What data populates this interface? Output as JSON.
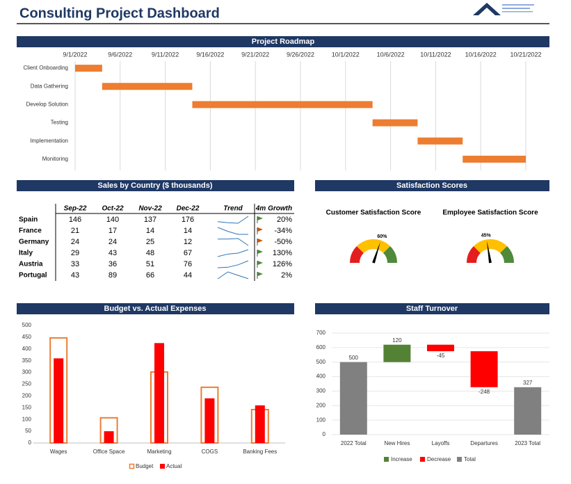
{
  "header": {
    "title": "Consulting Project Dashboard"
  },
  "sales_table": {
    "title": "Sales by Country ($ thousands)",
    "columns": [
      "Sep-22",
      "Oct-22",
      "Nov-22",
      "Dec-22",
      "Trend",
      "4m Growth"
    ],
    "rows": [
      {
        "country": "Spain",
        "values": [
          146,
          140,
          137,
          176
        ],
        "growth": "20%"
      },
      {
        "country": "France",
        "values": [
          21,
          17,
          14,
          14
        ],
        "growth": "-34%"
      },
      {
        "country": "Germany",
        "values": [
          24,
          24,
          25,
          12
        ],
        "growth": "-50%"
      },
      {
        "country": "Italy",
        "values": [
          29,
          43,
          48,
          67
        ],
        "growth": "130%"
      },
      {
        "country": "Austria",
        "values": [
          33,
          36,
          51,
          76
        ],
        "growth": "126%"
      },
      {
        "country": "Portugal",
        "values": [
          43,
          89,
          66,
          44
        ],
        "growth": "2%"
      }
    ]
  },
  "chart_data": [
    {
      "type": "gantt",
      "title": "Project Roadmap",
      "tasks": [
        {
          "name": "Client Onboarding",
          "start": "2022-09-01",
          "end": "2022-09-04"
        },
        {
          "name": "Data Gathering",
          "start": "2022-09-04",
          "end": "2022-09-14"
        },
        {
          "name": "Develop Solution",
          "start": "2022-09-14",
          "end": "2022-10-04"
        },
        {
          "name": "Testing",
          "start": "2022-10-04",
          "end": "2022-10-09"
        },
        {
          "name": "Implementation",
          "start": "2022-10-09",
          "end": "2022-10-14"
        },
        {
          "name": "Monitoring",
          "start": "2022-10-14",
          "end": "2022-10-21"
        }
      ],
      "color": "#ed7d31",
      "xlim": [
        "2022-09-01",
        "2022-10-21"
      ],
      "xticks": [
        {
          "value": "2022-09-01",
          "label": "9/1/2022"
        },
        {
          "value": "2022-09-06",
          "label": "9/6/2022"
        },
        {
          "value": "2022-09-11",
          "label": "9/11/2022"
        },
        {
          "value": "2022-09-16",
          "label": "9/16/2022"
        },
        {
          "value": "2022-09-21",
          "label": "9/21/2022"
        },
        {
          "value": "2022-09-26",
          "label": "9/26/2022"
        },
        {
          "value": "2022-10-01",
          "label": "10/1/2022"
        },
        {
          "value": "2022-10-06",
          "label": "10/6/2022"
        },
        {
          "value": "2022-10-11",
          "label": "10/11/2022"
        },
        {
          "value": "2022-10-16",
          "label": "10/16/2022"
        },
        {
          "value": "2022-10-21",
          "label": "10/21/2022"
        }
      ],
      "grid": true
    },
    {
      "type": "gauge",
      "title": "Satisfaction Scores",
      "names": [
        "Customer Satisfaction Score",
        "Employee Satisfaction Score"
      ],
      "values": [
        60,
        45
      ],
      "value_labels": [
        "60%",
        "45%"
      ],
      "range": [
        0,
        100
      ],
      "bands": [
        {
          "from": 0,
          "to": 25,
          "color": "#e41e1e"
        },
        {
          "from": 25,
          "to": 75,
          "color": "#ffc000"
        },
        {
          "from": 75,
          "to": 100,
          "color": "#4e8a3a"
        }
      ]
    },
    {
      "type": "bar",
      "title": "Budget vs. Actual Expenses",
      "categories": [
        "Wages",
        "Office Space",
        "Marketing",
        "COGS",
        "Banking Fees"
      ],
      "series": [
        {
          "name": "Budget",
          "color": "#ed7d31",
          "style": "outline",
          "values": [
            450,
            110,
            305,
            240,
            145
          ]
        },
        {
          "name": "Actual",
          "color": "#ff0000",
          "style": "fill",
          "values": [
            360,
            50,
            425,
            190,
            160
          ]
        }
      ],
      "ylim": [
        0,
        500
      ],
      "yticks": [
        0,
        50,
        100,
        150,
        200,
        250,
        300,
        350,
        400,
        450,
        500
      ],
      "legend": "bottom"
    },
    {
      "type": "waterfall",
      "title": "Staff Turnover",
      "categories": [
        "2022 Total",
        "New Hires",
        "Layoffs",
        "Departures",
        "2023 Total"
      ],
      "values": [
        500,
        120,
        -45,
        -248,
        327
      ],
      "kinds": [
        "Total",
        "Increase",
        "Decrease",
        "Decrease",
        "Total"
      ],
      "legend": [
        {
          "name": "Increase",
          "color": "#548235"
        },
        {
          "name": "Decrease",
          "color": "#ff0000"
        },
        {
          "name": "Total",
          "color": "#808080"
        }
      ],
      "ylim": [
        0,
        700
      ],
      "yticks": [
        0,
        100,
        200,
        300,
        400,
        500,
        600,
        700
      ],
      "grid": true
    }
  ]
}
